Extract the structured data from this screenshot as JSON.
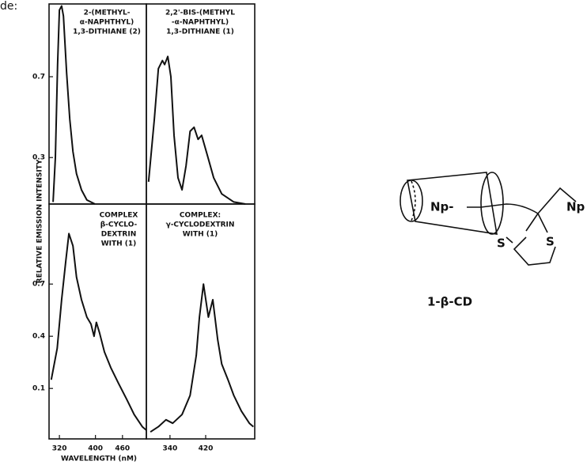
{
  "fragment": "de:",
  "figure": {
    "y_label": "RELATIVE EMISSION INTENSITY",
    "x_label": "WAVELENGTH (nM)"
  },
  "structure": {
    "labels": [
      "Np-",
      "S",
      "S",
      "Np"
    ],
    "caption": "1-β-CD"
  },
  "chart_data": [
    {
      "type": "line",
      "annotation": [
        "2-(METHYL-",
        "α-NAPHTHYL)",
        "1,3-DITHIANE (2)"
      ],
      "xlim": [
        297,
        513
      ],
      "ylim": [
        0.07,
        1.06
      ],
      "yticks": [
        0.7,
        0.3
      ],
      "color": "#111111",
      "x": [
        306,
        311,
        316,
        320,
        325,
        329,
        336,
        343,
        350,
        358,
        369,
        381,
        399
      ],
      "values": [
        0.08,
        0.3,
        0.76,
        1.03,
        1.05,
        1.0,
        0.72,
        0.49,
        0.33,
        0.22,
        0.14,
        0.09,
        0.07
      ]
    },
    {
      "type": "line",
      "annotation": [
        "2,2'-BIS-(METHYL",
        "-α-NAPHTHYL)",
        "1,3-DITHIANE (1)"
      ],
      "xlim": [
        287,
        530
      ],
      "ylim": [
        0.07,
        1.06
      ],
      "color": "#111111",
      "x": [
        292,
        305,
        314,
        323,
        328,
        335,
        342,
        349,
        358,
        367,
        376,
        385,
        394,
        403,
        411,
        424,
        438,
        456,
        483,
        509
      ],
      "values": [
        0.18,
        0.49,
        0.74,
        0.78,
        0.76,
        0.8,
        0.7,
        0.41,
        0.2,
        0.14,
        0.26,
        0.43,
        0.45,
        0.39,
        0.41,
        0.31,
        0.2,
        0.12,
        0.08,
        0.07
      ]
    },
    {
      "type": "line",
      "annotation": [
        "COMPLEX",
        "β-CYCLO-",
        "DEXTRIN",
        "WITH (1)"
      ],
      "xlim": [
        297,
        513
      ],
      "ylim": [
        -0.19,
        1.16
      ],
      "yticks": [
        0.7,
        0.4,
        0.1
      ],
      "xticks": [
        320,
        400,
        460
      ],
      "color": "#111111",
      "x": [
        302,
        315,
        325,
        334,
        341,
        350,
        358,
        369,
        381,
        390,
        397,
        402,
        409,
        420,
        434,
        451,
        469,
        486,
        504,
        513
      ],
      "values": [
        0.15,
        0.33,
        0.61,
        0.83,
        0.99,
        0.92,
        0.74,
        0.61,
        0.51,
        0.47,
        0.4,
        0.48,
        0.42,
        0.31,
        0.22,
        0.13,
        0.04,
        -0.05,
        -0.12,
        -0.14
      ]
    },
    {
      "type": "line",
      "annotation": [
        "COMPLEX:",
        "γ-CYCLODEXTRIN",
        "WITH (1)"
      ],
      "xlim": [
        287,
        530
      ],
      "ylim": [
        -0.19,
        1.16
      ],
      "xticks": [
        340,
        420
      ],
      "color": "#111111",
      "x": [
        296,
        314,
        331,
        346,
        367,
        385,
        399,
        406,
        415,
        426,
        436,
        447,
        456,
        470,
        483,
        500,
        518,
        527
      ],
      "values": [
        -0.15,
        -0.12,
        -0.08,
        -0.1,
        -0.05,
        0.06,
        0.29,
        0.51,
        0.7,
        0.51,
        0.61,
        0.38,
        0.24,
        0.15,
        0.06,
        -0.03,
        -0.1,
        -0.12
      ]
    }
  ]
}
